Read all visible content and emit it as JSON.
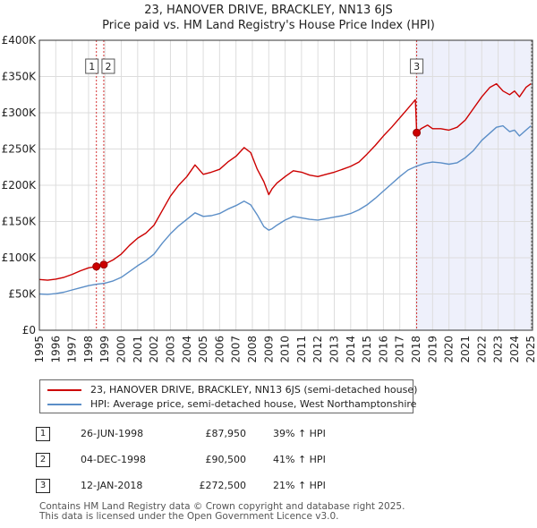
{
  "title_line1": "23, HANOVER DRIVE, BRACKLEY, NN13 6JS",
  "title_line2": "Price paid vs. HM Land Registry's House Price Index (HPI)",
  "colors": {
    "price": "#cc0000",
    "hpi": "#5b8ec7",
    "shade": "#eef0fb",
    "marker_line": "#cc0000",
    "grid": "#dddddd"
  },
  "chart_data": {
    "type": "line",
    "xlim": [
      1995,
      2025.1
    ],
    "ylim": [
      0,
      400000
    ],
    "y_ticks": [
      {
        "value": 0,
        "label": "£0"
      },
      {
        "value": 50000,
        "label": "£50K"
      },
      {
        "value": 100000,
        "label": "£100K"
      },
      {
        "value": 150000,
        "label": "£150K"
      },
      {
        "value": 200000,
        "label": "£200K"
      },
      {
        "value": 250000,
        "label": "£250K"
      },
      {
        "value": 300000,
        "label": "£300K"
      },
      {
        "value": 350000,
        "label": "£350K"
      },
      {
        "value": 400000,
        "label": "£400K"
      }
    ],
    "x_ticks": [
      "1995",
      "1996",
      "1997",
      "1998",
      "1999",
      "2000",
      "2001",
      "2002",
      "2003",
      "2004",
      "2005",
      "2006",
      "2007",
      "2008",
      "2009",
      "2010",
      "2011",
      "2012",
      "2013",
      "2014",
      "2015",
      "2016",
      "2017",
      "2018",
      "2019",
      "2020",
      "2021",
      "2022",
      "2023",
      "2024",
      "2025"
    ],
    "series": [
      {
        "name": "23, HANOVER DRIVE, BRACKLEY, NN13 6JS (semi-detached house)",
        "color": "#cc0000",
        "x": [
          1995.0,
          1995.5,
          1996.0,
          1996.5,
          1997.0,
          1997.5,
          1998.0,
          1998.48,
          1998.93,
          1999.5,
          2000.0,
          2000.5,
          2001.0,
          2001.5,
          2002.0,
          2002.5,
          2003.0,
          2003.5,
          2004.0,
          2004.5,
          2005.0,
          2005.5,
          2006.0,
          2006.5,
          2007.0,
          2007.5,
          2007.9,
          2008.3,
          2008.7,
          2009.0,
          2009.2,
          2009.5,
          2010.0,
          2010.5,
          2011.0,
          2011.5,
          2012.0,
          2012.5,
          2013.0,
          2013.5,
          2014.0,
          2014.5,
          2015.0,
          2015.5,
          2016.0,
          2016.5,
          2017.0,
          2017.5,
          2017.95,
          2018.03,
          2018.3,
          2018.7,
          2019.0,
          2019.5,
          2020.0,
          2020.5,
          2021.0,
          2021.5,
          2022.0,
          2022.5,
          2022.9,
          2023.3,
          2023.7,
          2024.0,
          2024.3,
          2024.7,
          2025.0
        ],
        "values": [
          70000,
          69000,
          70500,
          73000,
          77000,
          82000,
          86000,
          87950,
          90500,
          97000,
          105000,
          117000,
          127000,
          134000,
          145000,
          165000,
          185000,
          200000,
          212000,
          228000,
          215000,
          218000,
          222000,
          232000,
          240000,
          252000,
          245000,
          222000,
          205000,
          187000,
          195000,
          203000,
          212000,
          220000,
          218000,
          214000,
          212000,
          215000,
          218000,
          222000,
          226000,
          232000,
          243000,
          255000,
          268000,
          280000,
          293000,
          306000,
          318000,
          272500,
          278000,
          283000,
          278000,
          278000,
          276000,
          280000,
          290000,
          306000,
          322000,
          335000,
          340000,
          330000,
          325000,
          330000,
          322000,
          335000,
          340000
        ]
      },
      {
        "name": "HPI: Average price, semi-detached house, West Northamptonshire",
        "color": "#5b8ec7",
        "x": [
          1995.0,
          1995.5,
          1996.0,
          1996.5,
          1997.0,
          1997.5,
          1998.0,
          1998.5,
          1999.0,
          1999.5,
          2000.0,
          2000.5,
          2001.0,
          2001.5,
          2002.0,
          2002.5,
          2003.0,
          2003.5,
          2004.0,
          2004.5,
          2005.0,
          2005.5,
          2006.0,
          2006.5,
          2007.0,
          2007.5,
          2007.9,
          2008.3,
          2008.7,
          2009.0,
          2009.2,
          2009.5,
          2010.0,
          2010.5,
          2011.0,
          2011.5,
          2012.0,
          2012.5,
          2013.0,
          2013.5,
          2014.0,
          2014.5,
          2015.0,
          2015.5,
          2016.0,
          2016.5,
          2017.0,
          2017.5,
          2018.0,
          2018.5,
          2019.0,
          2019.5,
          2020.0,
          2020.5,
          2021.0,
          2021.5,
          2022.0,
          2022.5,
          2022.9,
          2023.3,
          2023.7,
          2024.0,
          2024.3,
          2024.7,
          2025.0
        ],
        "values": [
          50000,
          49500,
          50500,
          52500,
          55500,
          58500,
          61500,
          63500,
          65000,
          68000,
          73000,
          81000,
          89000,
          96000,
          105000,
          120000,
          133000,
          144000,
          153000,
          162000,
          157000,
          158000,
          161000,
          167000,
          172000,
          178000,
          173000,
          159000,
          143000,
          138000,
          140000,
          145000,
          152000,
          157000,
          155000,
          153000,
          152000,
          154000,
          156000,
          158000,
          161000,
          166000,
          173000,
          182000,
          192000,
          202000,
          212000,
          221000,
          226000,
          230000,
          232000,
          231000,
          229000,
          231000,
          238000,
          248000,
          262000,
          272000,
          280000,
          282000,
          274000,
          276000,
          268000,
          276000,
          282000
        ]
      }
    ],
    "sales": [
      {
        "label": "1",
        "x": 1998.48,
        "price": 87950
      },
      {
        "label": "2",
        "x": 1998.93,
        "price": 90500
      },
      {
        "label": "3",
        "x": 2018.03,
        "price": 272500
      }
    ]
  },
  "legend": {
    "price_label": "23, HANOVER DRIVE, BRACKLEY, NN13 6JS (semi-detached house)",
    "hpi_label": "HPI: Average price, semi-detached house, West Northamptonshire"
  },
  "transactions": [
    {
      "num": "1",
      "date": "26-JUN-1998",
      "price": "£87,950",
      "hpi": "39% ↑ HPI"
    },
    {
      "num": "2",
      "date": "04-DEC-1998",
      "price": "£90,500",
      "hpi": "41% ↑ HPI"
    },
    {
      "num": "3",
      "date": "12-JAN-2018",
      "price": "£272,500",
      "hpi": "21% ↑ HPI"
    }
  ],
  "footer_line1": "Contains HM Land Registry data © Crown copyright and database right 2025.",
  "footer_line2": "This data is licensed under the Open Government Licence v3.0."
}
